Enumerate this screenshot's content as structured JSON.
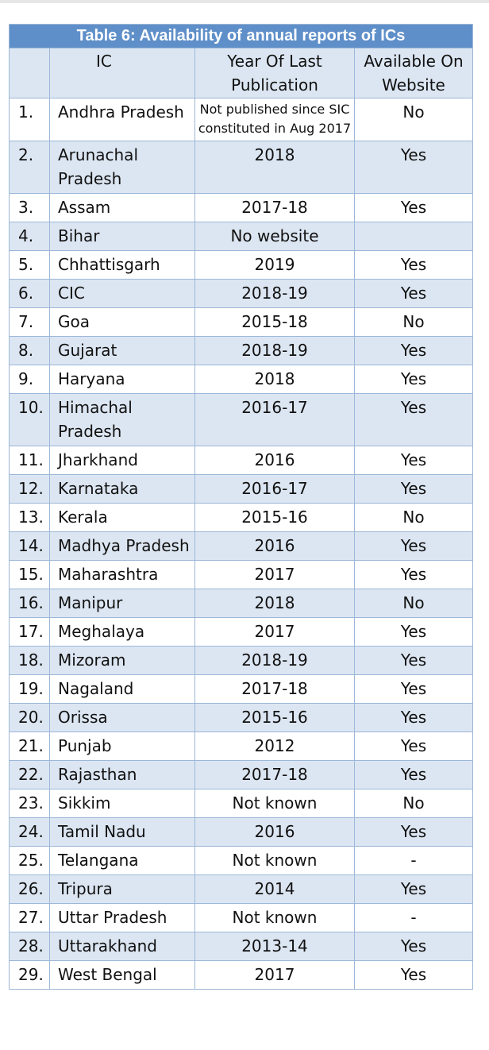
{
  "table": {
    "caption": "Table 6: Availability of annual reports of ICs",
    "headers": {
      "num": "",
      "ic": "IC",
      "year": "Year Of Last Publication",
      "available": "Available On Website"
    },
    "rows": [
      {
        "num": "1.",
        "ic": "Andhra Pradesh",
        "year": "Not published since SIC constituted in Aug 2017",
        "available": "No"
      },
      {
        "num": "2.",
        "ic": "Arunachal Pradesh",
        "year": "2018",
        "available": "Yes"
      },
      {
        "num": "3.",
        "ic": "Assam",
        "year": "2017-18",
        "available": "Yes"
      },
      {
        "num": "4.",
        "ic": "Bihar",
        "year": "No website",
        "available": ""
      },
      {
        "num": "5.",
        "ic": "Chhattisgarh",
        "year": "2019",
        "available": "Yes"
      },
      {
        "num": "6.",
        "ic": "CIC",
        "year": "2018-19",
        "available": "Yes"
      },
      {
        "num": "7.",
        "ic": "Goa",
        "year": "2015-18",
        "available": "No"
      },
      {
        "num": "8.",
        "ic": "Gujarat",
        "year": "2018-19",
        "available": "Yes"
      },
      {
        "num": "9.",
        "ic": "Haryana",
        "year": "2018",
        "available": "Yes"
      },
      {
        "num": "10.",
        "ic": "Himachal Pradesh",
        "year": "2016-17",
        "available": "Yes"
      },
      {
        "num": "11.",
        "ic": "Jharkhand",
        "year": "2016",
        "available": "Yes"
      },
      {
        "num": "12.",
        "ic": "Karnataka",
        "year": "2016-17",
        "available": "Yes"
      },
      {
        "num": "13.",
        "ic": "Kerala",
        "year": "2015-16",
        "available": "No"
      },
      {
        "num": "14.",
        "ic": "Madhya Pradesh",
        "year": "2016",
        "available": "Yes"
      },
      {
        "num": "15.",
        "ic": "Maharashtra",
        "year": "2017",
        "available": "Yes"
      },
      {
        "num": "16.",
        "ic": "Manipur",
        "year": "2018",
        "available": "No"
      },
      {
        "num": "17.",
        "ic": "Meghalaya",
        "year": "2017",
        "available": "Yes"
      },
      {
        "num": "18.",
        "ic": "Mizoram",
        "year": "2018-19",
        "available": "Yes"
      },
      {
        "num": "19.",
        "ic": "Nagaland",
        "year": "2017-18",
        "available": "Yes"
      },
      {
        "num": "20.",
        "ic": "Orissa",
        "year": "2015-16",
        "available": "Yes"
      },
      {
        "num": "21.",
        "ic": "Punjab",
        "year": "2012",
        "available": "Yes"
      },
      {
        "num": "22.",
        "ic": "Rajasthan",
        "year": "2017-18",
        "available": "Yes"
      },
      {
        "num": "23.",
        "ic": "Sikkim",
        "year": "Not known",
        "available": "No"
      },
      {
        "num": "24.",
        "ic": "Tamil Nadu",
        "year": "2016",
        "available": "Yes"
      },
      {
        "num": "25.",
        "ic": "Telangana",
        "year": "Not known",
        "available": "-"
      },
      {
        "num": "26.",
        "ic": "Tripura",
        "year": "2014",
        "available": "Yes"
      },
      {
        "num": "27.",
        "ic": "Uttar Pradesh",
        "year": "Not known",
        "available": "-"
      },
      {
        "num": "28.",
        "ic": "Uttarakhand",
        "year": "2013-14",
        "available": "Yes"
      },
      {
        "num": "29.",
        "ic": "West Bengal",
        "year": "2017",
        "available": "Yes"
      }
    ]
  }
}
